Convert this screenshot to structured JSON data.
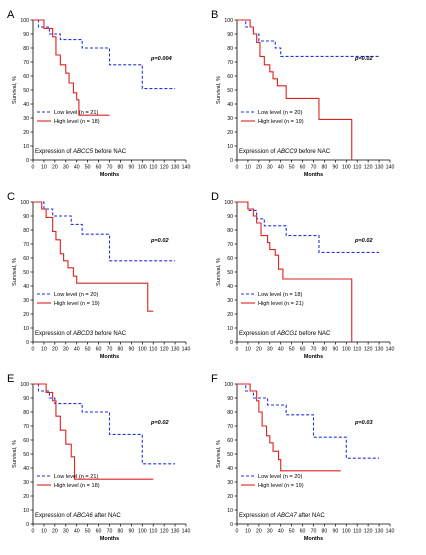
{
  "chart_data": [
    {
      "type": "line",
      "panel_label": "A",
      "xlabel": "Months",
      "ylabel": "Survival, %",
      "xlim": [
        0,
        140
      ],
      "ylim": [
        0,
        100
      ],
      "xticks": [
        0,
        10,
        20,
        30,
        40,
        50,
        60,
        70,
        80,
        90,
        100,
        110,
        120,
        130,
        140
      ],
      "yticks": [
        0,
        10,
        20,
        30,
        40,
        50,
        60,
        70,
        80,
        90,
        100
      ],
      "pvalue": "p=0.004",
      "legend_position": "bottom-left",
      "caption_prefix": "Expression of ",
      "caption_gene": "ABCC5",
      "caption_suffix": " before NAC",
      "series": [
        {
          "name": "Low level (n = 21)",
          "color": "#2233dd",
          "style": "dashed",
          "points": [
            [
              0,
              100
            ],
            [
              5,
              100
            ],
            [
              5,
              95
            ],
            [
              15,
              95
            ],
            [
              15,
              90
            ],
            [
              25,
              90
            ],
            [
              25,
              86
            ],
            [
              45,
              86
            ],
            [
              45,
              80
            ],
            [
              70,
              80
            ],
            [
              70,
              68
            ],
            [
              100,
              68
            ],
            [
              100,
              51
            ],
            [
              130,
              51
            ]
          ]
        },
        {
          "name": "High level (n = 18)",
          "color": "#dd2222",
          "style": "solid",
          "points": [
            [
              0,
              100
            ],
            [
              10,
              100
            ],
            [
              10,
              94
            ],
            [
              18,
              94
            ],
            [
              18,
              88
            ],
            [
              21,
              88
            ],
            [
              21,
              75
            ],
            [
              25,
              75
            ],
            [
              25,
              68
            ],
            [
              30,
              68
            ],
            [
              30,
              62
            ],
            [
              33,
              62
            ],
            [
              33,
              55
            ],
            [
              37,
              55
            ],
            [
              37,
              48
            ],
            [
              40,
              48
            ],
            [
              40,
              43
            ],
            [
              42,
              43
            ],
            [
              42,
              32
            ],
            [
              70,
              32
            ]
          ]
        }
      ]
    },
    {
      "type": "line",
      "panel_label": "B",
      "xlabel": "Months",
      "ylabel": "Survival, %",
      "xlim": [
        0,
        140
      ],
      "ylim": [
        0,
        100
      ],
      "xticks": [
        0,
        10,
        20,
        30,
        40,
        50,
        60,
        70,
        80,
        90,
        100,
        110,
        120,
        130,
        140
      ],
      "yticks": [
        0,
        10,
        20,
        30,
        40,
        50,
        60,
        70,
        80,
        90,
        100
      ],
      "pvalue": "p=0.02",
      "legend_position": "bottom-left",
      "caption_prefix": "Expression of ",
      "caption_gene": "ABCC9",
      "caption_suffix": " before NAC",
      "series": [
        {
          "name": "Low level (n = 20)",
          "color": "#2233dd",
          "style": "dashed",
          "points": [
            [
              0,
              100
            ],
            [
              8,
              100
            ],
            [
              8,
              95
            ],
            [
              15,
              95
            ],
            [
              15,
              90
            ],
            [
              20,
              90
            ],
            [
              20,
              85
            ],
            [
              35,
              85
            ],
            [
              35,
              80
            ],
            [
              40,
              80
            ],
            [
              40,
              74
            ],
            [
              130,
              74
            ]
          ]
        },
        {
          "name": "High level (n = 19)",
          "color": "#dd2222",
          "style": "solid",
          "points": [
            [
              0,
              100
            ],
            [
              12,
              100
            ],
            [
              12,
              95
            ],
            [
              15,
              95
            ],
            [
              15,
              90
            ],
            [
              18,
              90
            ],
            [
              18,
              84
            ],
            [
              21,
              84
            ],
            [
              21,
              74
            ],
            [
              25,
              74
            ],
            [
              25,
              68
            ],
            [
              30,
              68
            ],
            [
              30,
              63
            ],
            [
              33,
              63
            ],
            [
              33,
              58
            ],
            [
              37,
              58
            ],
            [
              37,
              53
            ],
            [
              45,
              53
            ],
            [
              45,
              44
            ],
            [
              75,
              44
            ],
            [
              75,
              29
            ],
            [
              105,
              29
            ],
            [
              105,
              0
            ]
          ]
        }
      ]
    },
    {
      "type": "line",
      "panel_label": "C",
      "xlabel": "Months",
      "ylabel": "Survival, %",
      "xlim": [
        0,
        140
      ],
      "ylim": [
        0,
        100
      ],
      "xticks": [
        0,
        10,
        20,
        30,
        40,
        50,
        60,
        70,
        80,
        90,
        100,
        110,
        120,
        130,
        140
      ],
      "yticks": [
        0,
        10,
        20,
        30,
        40,
        50,
        60,
        70,
        80,
        90,
        100
      ],
      "pvalue": "p=0.02",
      "legend_position": "bottom-left",
      "caption_prefix": "Expression of ",
      "caption_gene": "ABCD3",
      "caption_suffix": " before NAC",
      "series": [
        {
          "name": "Low level (n = 20)",
          "color": "#2233dd",
          "style": "dashed",
          "points": [
            [
              0,
              100
            ],
            [
              10,
              100
            ],
            [
              10,
              95
            ],
            [
              18,
              95
            ],
            [
              18,
              90
            ],
            [
              35,
              90
            ],
            [
              35,
              84
            ],
            [
              45,
              84
            ],
            [
              45,
              77
            ],
            [
              70,
              77
            ],
            [
              70,
              58
            ],
            [
              130,
              58
            ]
          ]
        },
        {
          "name": "High level (n = 19)",
          "color": "#dd2222",
          "style": "solid",
          "points": [
            [
              0,
              100
            ],
            [
              8,
              100
            ],
            [
              8,
              95
            ],
            [
              12,
              95
            ],
            [
              12,
              89
            ],
            [
              18,
              89
            ],
            [
              18,
              79
            ],
            [
              21,
              79
            ],
            [
              21,
              73
            ],
            [
              25,
              73
            ],
            [
              25,
              63
            ],
            [
              28,
              63
            ],
            [
              28,
              58
            ],
            [
              32,
              58
            ],
            [
              32,
              53
            ],
            [
              37,
              53
            ],
            [
              37,
              47
            ],
            [
              40,
              47
            ],
            [
              40,
              42
            ],
            [
              105,
              42
            ],
            [
              105,
              22
            ],
            [
              110,
              22
            ]
          ]
        }
      ]
    },
    {
      "type": "line",
      "panel_label": "D",
      "xlabel": "Months",
      "ylabel": "Survival, %",
      "xlim": [
        0,
        140
      ],
      "ylim": [
        0,
        100
      ],
      "xticks": [
        0,
        10,
        20,
        30,
        40,
        50,
        60,
        70,
        80,
        90,
        100,
        110,
        120,
        130,
        140
      ],
      "yticks": [
        0,
        10,
        20,
        30,
        40,
        50,
        60,
        70,
        80,
        90,
        100
      ],
      "pvalue": "p=0.02",
      "legend_position": "bottom-left",
      "caption_prefix": "Expression of ",
      "caption_gene": "ABCG1",
      "caption_suffix": " before NAC",
      "series": [
        {
          "name": "Low level (n = 18)",
          "color": "#2233dd",
          "style": "dashed",
          "points": [
            [
              0,
              100
            ],
            [
              10,
              100
            ],
            [
              10,
              94
            ],
            [
              18,
              94
            ],
            [
              18,
              88
            ],
            [
              25,
              88
            ],
            [
              25,
              83
            ],
            [
              45,
              83
            ],
            [
              45,
              76
            ],
            [
              75,
              76
            ],
            [
              75,
              64
            ],
            [
              130,
              64
            ]
          ]
        },
        {
          "name": "High level (n = 21)",
          "color": "#dd2222",
          "style": "solid",
          "points": [
            [
              0,
              100
            ],
            [
              10,
              100
            ],
            [
              10,
              95
            ],
            [
              15,
              95
            ],
            [
              15,
              90
            ],
            [
              18,
              90
            ],
            [
              18,
              85
            ],
            [
              22,
              85
            ],
            [
              22,
              76
            ],
            [
              28,
              76
            ],
            [
              28,
              71
            ],
            [
              30,
              71
            ],
            [
              30,
              66
            ],
            [
              35,
              66
            ],
            [
              35,
              62
            ],
            [
              38,
              62
            ],
            [
              38,
              52
            ],
            [
              42,
              52
            ],
            [
              42,
              45
            ],
            [
              105,
              45
            ],
            [
              105,
              0
            ]
          ]
        }
      ]
    },
    {
      "type": "line",
      "panel_label": "E",
      "xlabel": "Months",
      "ylabel": "Survival, %",
      "xlim": [
        0,
        140
      ],
      "ylim": [
        0,
        100
      ],
      "xticks": [
        0,
        10,
        20,
        30,
        40,
        50,
        60,
        70,
        80,
        90,
        100,
        110,
        120,
        130,
        140
      ],
      "yticks": [
        0,
        10,
        20,
        30,
        40,
        50,
        60,
        70,
        80,
        90,
        100
      ],
      "pvalue": "p=0.02",
      "legend_position": "bottom-left",
      "caption_prefix": "Expression of ",
      "caption_gene": "ABCA6",
      "caption_suffix": " after NAC",
      "series": [
        {
          "name": "Low level (n = 21)",
          "color": "#2233dd",
          "style": "dashed",
          "points": [
            [
              0,
              100
            ],
            [
              5,
              100
            ],
            [
              5,
              95
            ],
            [
              15,
              95
            ],
            [
              15,
              90
            ],
            [
              20,
              90
            ],
            [
              20,
              86
            ],
            [
              45,
              86
            ],
            [
              45,
              80
            ],
            [
              70,
              80
            ],
            [
              70,
              64
            ],
            [
              100,
              64
            ],
            [
              100,
              43
            ],
            [
              130,
              43
            ]
          ]
        },
        {
          "name": "High level (n = 18)",
          "color": "#dd2222",
          "style": "solid",
          "points": [
            [
              0,
              100
            ],
            [
              12,
              100
            ],
            [
              12,
              94
            ],
            [
              18,
              94
            ],
            [
              18,
              88
            ],
            [
              21,
              88
            ],
            [
              21,
              77
            ],
            [
              25,
              77
            ],
            [
              25,
              67
            ],
            [
              30,
              67
            ],
            [
              30,
              57
            ],
            [
              35,
              57
            ],
            [
              35,
              48
            ],
            [
              38,
              48
            ],
            [
              38,
              32
            ],
            [
              110,
              32
            ]
          ]
        }
      ]
    },
    {
      "type": "line",
      "panel_label": "F",
      "xlabel": "Months",
      "ylabel": "Survival, %",
      "xlim": [
        0,
        140
      ],
      "ylim": [
        0,
        100
      ],
      "xticks": [
        0,
        10,
        20,
        30,
        40,
        50,
        60,
        70,
        80,
        90,
        100,
        110,
        120,
        130,
        140
      ],
      "yticks": [
        0,
        10,
        20,
        30,
        40,
        50,
        60,
        70,
        80,
        90,
        100
      ],
      "pvalue": "p=0.03",
      "legend_position": "bottom-left",
      "caption_prefix": "Expression of ",
      "caption_gene": "ABCA7",
      "caption_suffix": " after NAC",
      "series": [
        {
          "name": "Low level (n = 20)",
          "color": "#2233dd",
          "style": "dashed",
          "points": [
            [
              0,
              100
            ],
            [
              8,
              100
            ],
            [
              8,
              95
            ],
            [
              15,
              95
            ],
            [
              15,
              90
            ],
            [
              28,
              90
            ],
            [
              28,
              85
            ],
            [
              45,
              85
            ],
            [
              45,
              78
            ],
            [
              70,
              78
            ],
            [
              70,
              62
            ],
            [
              100,
              62
            ],
            [
              100,
              47
            ],
            [
              130,
              47
            ]
          ]
        },
        {
          "name": "High level (n = 19)",
          "color": "#dd2222",
          "style": "solid",
          "points": [
            [
              0,
              100
            ],
            [
              12,
              100
            ],
            [
              12,
              95
            ],
            [
              18,
              95
            ],
            [
              18,
              88
            ],
            [
              20,
              88
            ],
            [
              20,
              80
            ],
            [
              23,
              80
            ],
            [
              23,
              70
            ],
            [
              27,
              70
            ],
            [
              27,
              63
            ],
            [
              30,
              63
            ],
            [
              30,
              58
            ],
            [
              33,
              58
            ],
            [
              33,
              52
            ],
            [
              38,
              52
            ],
            [
              38,
              46
            ],
            [
              40,
              46
            ],
            [
              40,
              38
            ],
            [
              95,
              38
            ]
          ]
        }
      ]
    }
  ]
}
